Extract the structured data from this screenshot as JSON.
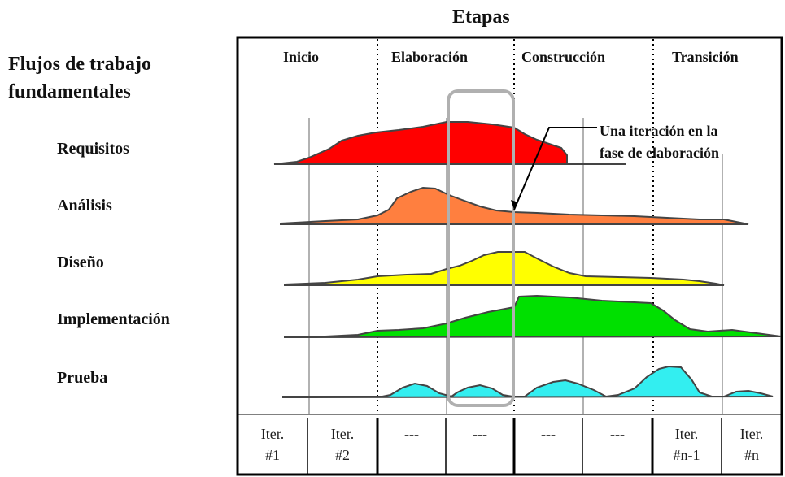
{
  "title": "Etapas",
  "workflow_heading": [
    "Flujos de trabajo",
    "fundamentales"
  ],
  "workflows": [
    {
      "label": "Requisitos",
      "color": "#ff0000"
    },
    {
      "label": "Análisis",
      "color": "#ff7f3f"
    },
    {
      "label": "Diseño",
      "color": "#ffff00"
    },
    {
      "label": "Implementación",
      "color": "#00e000"
    },
    {
      "label": "Prueba",
      "color": "#33eef0"
    }
  ],
  "phases": [
    "Inicio",
    "Elaboración",
    "Construcción",
    "Transición"
  ],
  "annotation": [
    "Una iteración en la",
    "fase de elaboración"
  ],
  "iterations": [
    [
      "Iter.",
      "#1"
    ],
    [
      "Iter.",
      "#2"
    ],
    [
      "---",
      ""
    ],
    [
      "---",
      ""
    ],
    [
      "---",
      ""
    ],
    [
      "---",
      ""
    ],
    [
      "Iter.",
      "#n-1"
    ],
    [
      "Iter.",
      "#n"
    ]
  ]
}
